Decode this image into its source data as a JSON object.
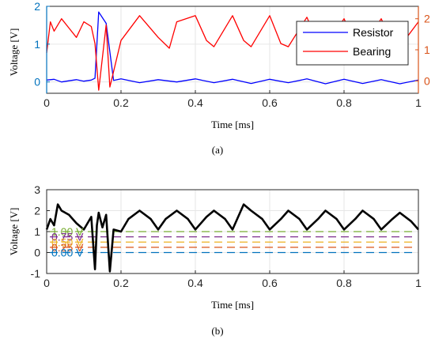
{
  "chart_data": [
    {
      "panel_label": "(a)",
      "type": "line",
      "xlabel": "Time [ms]",
      "ylabel": "Voltage [V]",
      "xlim": [
        0,
        1
      ],
      "x_ticks": [
        "0",
        "0.2",
        "0.4",
        "0.6",
        "0.8",
        "1"
      ],
      "left_axis": {
        "ylim": [
          -0.3,
          2.0
        ],
        "ticks": [
          "0",
          "1",
          "2"
        ],
        "color": "#0072BD"
      },
      "right_axis": {
        "ylim": [
          -0.4,
          2.4
        ],
        "ticks": [
          "0",
          "1",
          "2"
        ],
        "color": "#D95319"
      },
      "grid": true,
      "legend": {
        "position": "top-right"
      },
      "series": [
        {
          "name": "Resistor",
          "axis": "left",
          "color": "#0000FF",
          "x": [
            0,
            0.02,
            0.04,
            0.06,
            0.08,
            0.1,
            0.12,
            0.13,
            0.14,
            0.16,
            0.18,
            0.2,
            0.25,
            0.3,
            0.35,
            0.4,
            0.45,
            0.5,
            0.55,
            0.6,
            0.65,
            0.7,
            0.75,
            0.8,
            0.85,
            0.9,
            0.95,
            1.0
          ],
          "y": [
            0.05,
            0.07,
            0.0,
            0.03,
            0.06,
            0.02,
            0.05,
            0.1,
            1.85,
            1.55,
            0.04,
            0.08,
            -0.02,
            0.06,
            0.0,
            0.08,
            -0.02,
            0.07,
            -0.04,
            0.07,
            -0.02,
            0.08,
            -0.05,
            0.07,
            -0.04,
            0.06,
            -0.05,
            0.05
          ]
        },
        {
          "name": "Bearing",
          "axis": "right",
          "color": "#FF0000",
          "x": [
            0,
            0.01,
            0.02,
            0.04,
            0.06,
            0.08,
            0.1,
            0.12,
            0.13,
            0.14,
            0.16,
            0.17,
            0.2,
            0.25,
            0.3,
            0.33,
            0.35,
            0.4,
            0.43,
            0.45,
            0.5,
            0.53,
            0.55,
            0.6,
            0.63,
            0.65,
            0.7,
            0.73,
            0.75,
            0.8,
            0.83,
            0.85,
            0.9,
            0.93,
            0.95,
            1.0
          ],
          "y": [
            0.9,
            1.9,
            1.6,
            2.0,
            1.7,
            1.4,
            1.9,
            1.75,
            1.2,
            -0.3,
            1.8,
            -0.2,
            1.3,
            2.1,
            1.4,
            1.05,
            1.9,
            2.1,
            1.3,
            1.1,
            2.1,
            1.3,
            1.1,
            2.1,
            1.2,
            1.1,
            2.05,
            1.2,
            1.1,
            2.0,
            1.2,
            1.1,
            2.0,
            1.2,
            1.1,
            1.9
          ]
        }
      ]
    },
    {
      "panel_label": "(b)",
      "type": "line",
      "xlabel": "Time [ms]",
      "ylabel": "Voltage [V]",
      "xlim": [
        0,
        1
      ],
      "ylim": [
        -1,
        3
      ],
      "x_ticks": [
        "0",
        "0.2",
        "0.4",
        "0.6",
        "0.8",
        "1"
      ],
      "y_ticks": [
        "-1",
        "0",
        "1",
        "2",
        "3"
      ],
      "grid": true,
      "series": [
        {
          "color": "#000000",
          "x": [
            0,
            0.01,
            0.02,
            0.03,
            0.04,
            0.06,
            0.08,
            0.1,
            0.12,
            0.13,
            0.135,
            0.14,
            0.15,
            0.16,
            0.17,
            0.18,
            0.2,
            0.22,
            0.25,
            0.28,
            0.3,
            0.32,
            0.35,
            0.38,
            0.4,
            0.43,
            0.45,
            0.48,
            0.5,
            0.53,
            0.55,
            0.58,
            0.6,
            0.63,
            0.65,
            0.68,
            0.7,
            0.73,
            0.75,
            0.78,
            0.8,
            0.83,
            0.85,
            0.88,
            0.9,
            0.93,
            0.95,
            0.98,
            1.0
          ],
          "y": [
            1.1,
            1.6,
            1.3,
            2.3,
            2.0,
            1.8,
            1.4,
            1.1,
            1.7,
            -0.8,
            1.3,
            1.9,
            1.2,
            1.8,
            -0.9,
            1.1,
            1.0,
            1.6,
            2.0,
            1.6,
            1.1,
            1.6,
            2.0,
            1.6,
            1.1,
            1.7,
            2.0,
            1.6,
            1.1,
            2.3,
            2.0,
            1.6,
            1.1,
            1.6,
            2.0,
            1.6,
            1.1,
            1.6,
            2.0,
            1.6,
            1.1,
            1.6,
            2.0,
            1.6,
            1.1,
            1.6,
            1.9,
            1.5,
            1.1
          ]
        }
      ],
      "threshold_lines": [
        {
          "label": "1.00 V",
          "value": 1.0,
          "color": "#77AC30"
        },
        {
          "label": "0.75 V",
          "value": 0.75,
          "color": "#7E2F8E"
        },
        {
          "label": "0.50 V",
          "value": 0.5,
          "color": "#EDB120"
        },
        {
          "label": "0.25 V",
          "value": 0.25,
          "color": "#D95319"
        },
        {
          "label": "0.00 V",
          "value": 0.0,
          "color": "#0072BD"
        }
      ]
    }
  ]
}
